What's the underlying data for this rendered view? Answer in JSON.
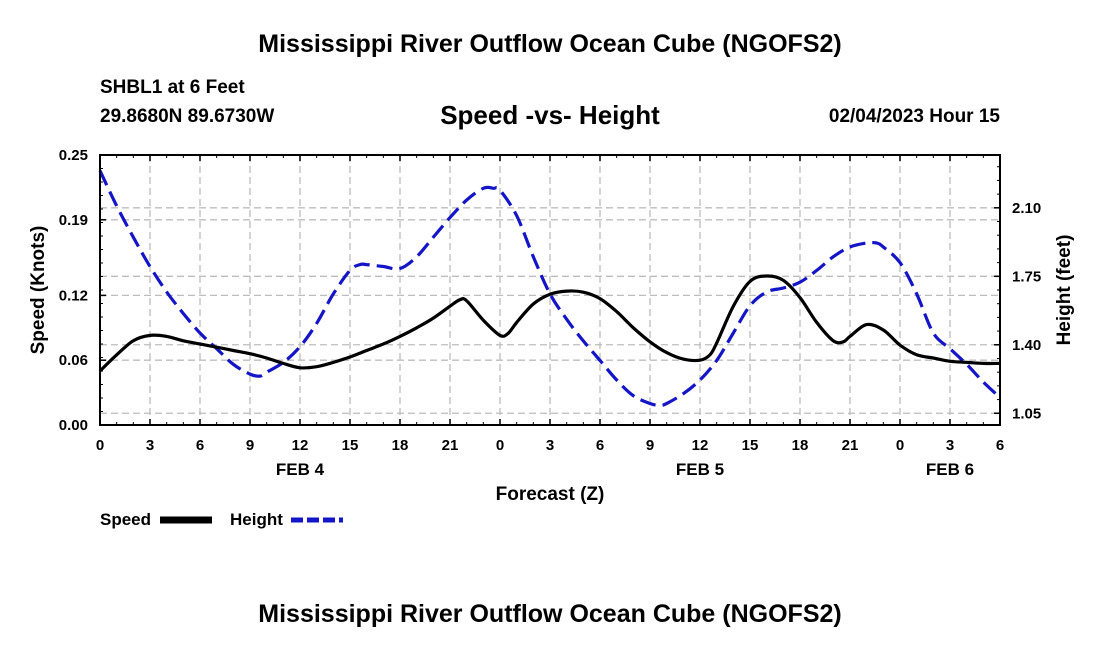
{
  "header": {
    "main_title": "Mississippi River Outflow Ocean Cube (NGOFS2)",
    "station": "SHBL1 at 6 Feet",
    "coordinates": "29.8680N  89.6730W",
    "subtitle": "Speed -vs- Height",
    "datetime": "02/04/2023 Hour 15"
  },
  "footer": {
    "bottom_title": "Mississippi River Outflow Ocean Cube (NGOFS2)"
  },
  "chart_data": {
    "type": "line",
    "xlabel": "Forecast (Z)",
    "ylabel_left": "Speed (Knots)",
    "ylabel_right": "Height (feet)",
    "x_range_hours": [
      0,
      54
    ],
    "x_tick_labels": [
      "0",
      "3",
      "6",
      "9",
      "12",
      "15",
      "18",
      "21",
      "0",
      "3",
      "6",
      "9",
      "12",
      "15",
      "18",
      "21",
      "0",
      "3",
      "6"
    ],
    "date_labels": [
      {
        "label": "FEB 4",
        "hour": 12
      },
      {
        "label": "FEB 5",
        "hour": 36
      },
      {
        "label": "FEB 6",
        "hour": 51
      }
    ],
    "y_left": {
      "min": 0,
      "max": 0.25,
      "ticks": [
        0.0,
        0.06,
        0.12,
        0.19,
        0.25
      ],
      "tick_labels": [
        "0.00",
        "0.06",
        "0.12",
        "0.19",
        "0.25"
      ]
    },
    "y_right": {
      "min": 0.99,
      "max": 2.37,
      "ticks": [
        1.05,
        1.4,
        1.75,
        2.1
      ],
      "tick_labels": [
        "1.05",
        "1.40",
        "1.75",
        "2.10"
      ]
    },
    "grid": true,
    "legend_position": "bottom-left",
    "series": [
      {
        "name": "Speed",
        "axis": "left",
        "color": "#000000",
        "style": "solid",
        "points": [
          [
            0,
            0.05
          ],
          [
            1,
            0.065
          ],
          [
            2,
            0.078
          ],
          [
            3,
            0.083
          ],
          [
            4,
            0.082
          ],
          [
            5,
            0.078
          ],
          [
            6,
            0.075
          ],
          [
            7,
            0.072
          ],
          [
            8,
            0.069
          ],
          [
            9,
            0.066
          ],
          [
            10,
            0.062
          ],
          [
            11,
            0.057
          ],
          [
            12,
            0.053
          ],
          [
            13,
            0.054
          ],
          [
            14,
            0.058
          ],
          [
            15,
            0.063
          ],
          [
            16,
            0.069
          ],
          [
            17,
            0.075
          ],
          [
            18,
            0.082
          ],
          [
            19,
            0.09
          ],
          [
            20,
            0.099
          ],
          [
            21,
            0.11
          ],
          [
            21.6,
            0.116
          ],
          [
            22,
            0.115
          ],
          [
            23,
            0.097
          ],
          [
            24,
            0.083
          ],
          [
            24.5,
            0.085
          ],
          [
            25,
            0.095
          ],
          [
            26,
            0.112
          ],
          [
            27,
            0.121
          ],
          [
            28,
            0.124
          ],
          [
            29,
            0.123
          ],
          [
            30,
            0.117
          ],
          [
            31,
            0.105
          ],
          [
            32,
            0.09
          ],
          [
            33,
            0.077
          ],
          [
            34,
            0.067
          ],
          [
            35,
            0.061
          ],
          [
            36,
            0.06
          ],
          [
            36.6,
            0.065
          ],
          [
            37,
            0.076
          ],
          [
            38,
            0.11
          ],
          [
            39,
            0.133
          ],
          [
            40,
            0.138
          ],
          [
            41,
            0.134
          ],
          [
            42,
            0.118
          ],
          [
            43,
            0.095
          ],
          [
            44,
            0.078
          ],
          [
            44.6,
            0.077
          ],
          [
            45,
            0.082
          ],
          [
            46,
            0.093
          ],
          [
            47,
            0.088
          ],
          [
            48,
            0.074
          ],
          [
            49,
            0.065
          ],
          [
            50,
            0.062
          ],
          [
            51,
            0.059
          ],
          [
            52,
            0.058
          ],
          [
            53,
            0.057
          ],
          [
            54,
            0.057
          ]
        ]
      },
      {
        "name": "Height",
        "axis": "right",
        "color": "#1515c8",
        "style": "dashed",
        "points": [
          [
            0,
            2.29
          ],
          [
            1,
            2.11
          ],
          [
            2,
            1.95
          ],
          [
            3,
            1.8
          ],
          [
            4,
            1.67
          ],
          [
            5,
            1.56
          ],
          [
            6,
            1.46
          ],
          [
            7,
            1.38
          ],
          [
            8,
            1.3
          ],
          [
            9,
            1.25
          ],
          [
            9.6,
            1.24
          ],
          [
            10,
            1.26
          ],
          [
            11,
            1.31
          ],
          [
            12,
            1.39
          ],
          [
            13,
            1.51
          ],
          [
            14,
            1.66
          ],
          [
            15,
            1.78
          ],
          [
            15.6,
            1.81
          ],
          [
            16,
            1.81
          ],
          [
            17,
            1.8
          ],
          [
            18,
            1.79
          ],
          [
            19,
            1.85
          ],
          [
            20,
            1.95
          ],
          [
            21,
            2.05
          ],
          [
            22,
            2.14
          ],
          [
            23,
            2.2
          ],
          [
            23.6,
            2.2
          ],
          [
            24,
            2.19
          ],
          [
            25,
            2.06
          ],
          [
            26,
            1.85
          ],
          [
            27,
            1.66
          ],
          [
            28,
            1.53
          ],
          [
            29,
            1.42
          ],
          [
            30,
            1.32
          ],
          [
            31,
            1.22
          ],
          [
            32,
            1.14
          ],
          [
            33,
            1.1
          ],
          [
            33.6,
            1.09
          ],
          [
            34,
            1.1
          ],
          [
            35,
            1.15
          ],
          [
            36,
            1.22
          ],
          [
            37,
            1.32
          ],
          [
            38,
            1.46
          ],
          [
            39,
            1.6
          ],
          [
            40,
            1.67
          ],
          [
            41,
            1.69
          ],
          [
            42,
            1.72
          ],
          [
            43,
            1.78
          ],
          [
            44,
            1.85
          ],
          [
            45,
            1.9
          ],
          [
            46,
            1.92
          ],
          [
            46.6,
            1.92
          ],
          [
            47,
            1.9
          ],
          [
            48,
            1.82
          ],
          [
            49,
            1.66
          ],
          [
            50,
            1.46
          ],
          [
            51,
            1.38
          ],
          [
            52,
            1.3
          ],
          [
            53,
            1.21
          ],
          [
            54,
            1.13
          ]
        ]
      }
    ]
  }
}
